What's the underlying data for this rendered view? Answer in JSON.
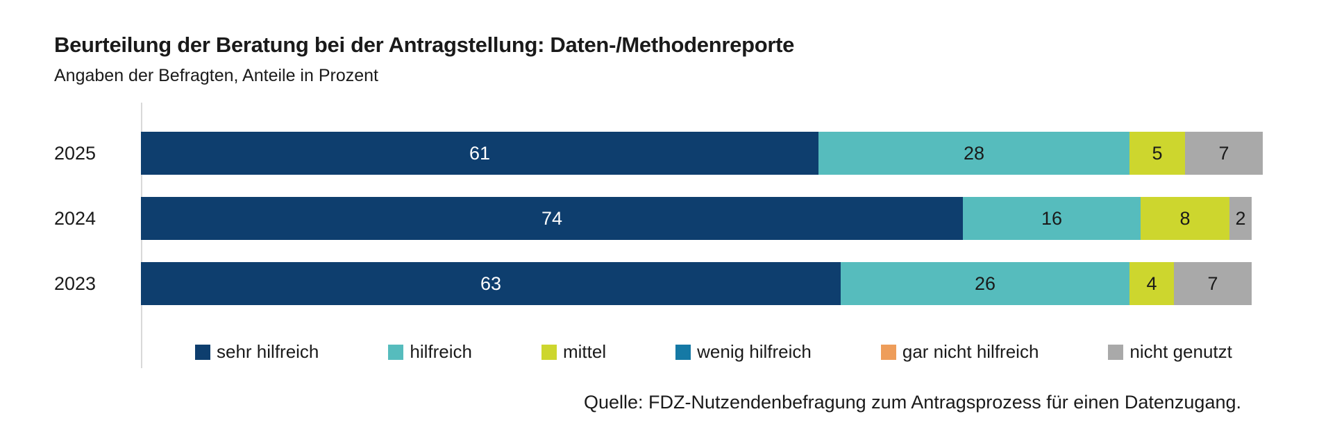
{
  "header": {
    "title": "Beurteilung der Beratung bei der Antragstellung: Daten-/Methodenreporte",
    "subtitle": "Angaben der Befragten, Anteile in Prozent"
  },
  "chart_data": {
    "type": "bar",
    "variant": "horizontal_stacked",
    "value_unit": "percent",
    "xlim": [
      0,
      100
    ],
    "grid": false,
    "legend_position": "bottom",
    "categories": [
      "2025",
      "2024",
      "2023"
    ],
    "series": [
      {
        "name": "sehr hilfreich",
        "color": "#0e3e6e",
        "label_color": "#ffffff",
        "values": [
          61,
          74,
          63
        ]
      },
      {
        "name": "hilfreich",
        "color": "#56bcbd",
        "label_color": "#1a1a1a",
        "values": [
          28,
          16,
          26
        ]
      },
      {
        "name": "mittel",
        "color": "#cdd62e",
        "label_color": "#1a1a1a",
        "values": [
          5,
          8,
          4
        ]
      },
      {
        "name": "wenig hilfreich",
        "color": "#1579a5",
        "label_color": "#ffffff",
        "values": [
          0,
          0,
          0
        ]
      },
      {
        "name": "gar nicht hilfreich",
        "color": "#ee9d5a",
        "label_color": "#1a1a1a",
        "values": [
          0,
          0,
          0
        ]
      },
      {
        "name": "nicht genutzt",
        "color": "#a9a9a9",
        "label_color": "#1a1a1a",
        "values": [
          7,
          2,
          7
        ]
      }
    ],
    "axis_color": "#d9d9d9"
  },
  "source": "Quelle: FDZ-Nutzendenbefragung zum Antragsprozess für einen Datenzugang."
}
